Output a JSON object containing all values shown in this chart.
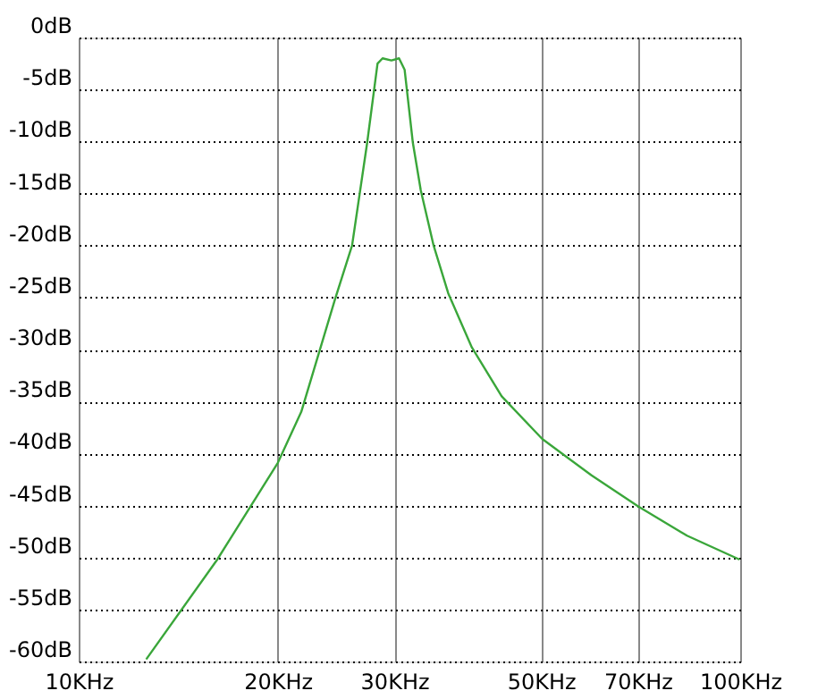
{
  "chart_data": {
    "type": "line",
    "x": [
      12.65,
      16.2,
      20.0,
      21.7,
      24.4,
      25.9,
      27.3,
      28.3,
      28.8,
      29.7,
      30.5,
      31.1,
      32.0,
      32.9,
      34.4,
      36.2,
      39.3,
      43.6,
      50.2,
      59.6,
      70.2,
      83.1,
      99.8
    ],
    "series": [
      {
        "color": "#3aa63a",
        "values": [
          -59.8,
          -50.2,
          -40.9,
          -36,
          -25.2,
          -20,
          -10.1,
          -2.5,
          -2.0,
          -2.2,
          -2.0,
          -3.1,
          -10.1,
          -14.7,
          -20,
          -24.6,
          -29.8,
          -34.5,
          -38.6,
          -42.1,
          -45.1,
          -47.9,
          -50.2
        ]
      }
    ],
    "log": "x",
    "xlim": [
      10,
      100
    ],
    "xticks": [
      {
        "value": 10,
        "label": "10KHz"
      },
      {
        "value": 20,
        "label": "20KHz"
      },
      {
        "value": 30,
        "label": "30KHz"
      },
      {
        "value": 50,
        "label": "50KHz"
      },
      {
        "value": 70,
        "label": "70KHz"
      },
      {
        "value": 100,
        "label": "100KHz"
      }
    ],
    "ylim": [
      -60,
      0
    ],
    "yticks": [
      {
        "value": 0,
        "label": "0dB"
      },
      {
        "value": -5,
        "label": "-5dB"
      },
      {
        "value": -10,
        "label": "-10dB"
      },
      {
        "value": -15,
        "label": "-15dB"
      },
      {
        "value": -20,
        "label": "-20dB"
      },
      {
        "value": -25,
        "label": "-25dB"
      },
      {
        "value": -30,
        "label": "-30dB"
      },
      {
        "value": -35,
        "label": "-35dB"
      },
      {
        "value": -40,
        "label": "-40dB"
      },
      {
        "value": -45,
        "label": "-45dB"
      },
      {
        "value": -50,
        "label": "-50dB"
      },
      {
        "value": -55,
        "label": "-55dB"
      },
      {
        "value": -60,
        "label": "-60dB"
      }
    ],
    "grid": true,
    "marker": "none",
    "line_style": "solid"
  }
}
